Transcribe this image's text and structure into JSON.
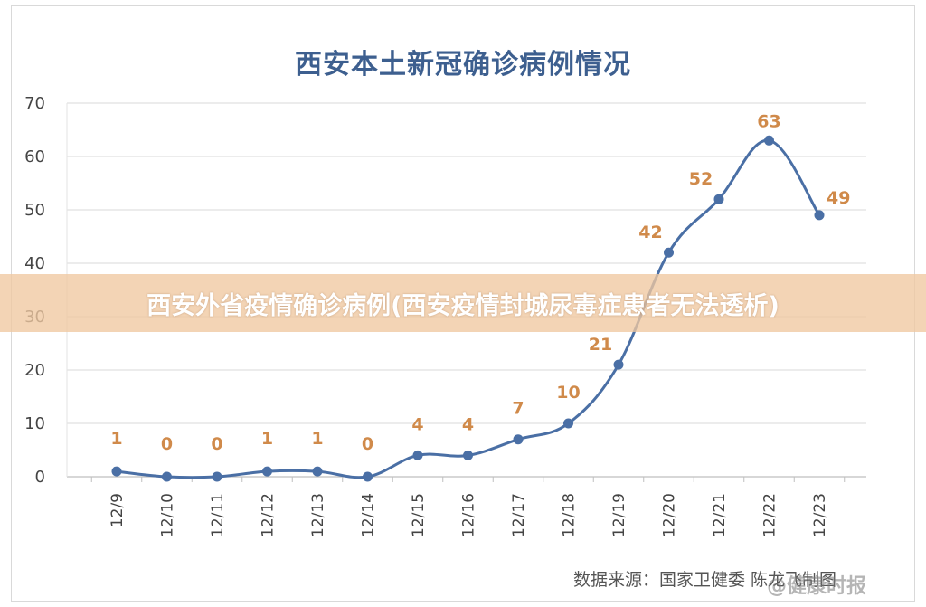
{
  "chart_data": {
    "type": "line",
    "title": "西安本土新冠确诊病例情况",
    "categories": [
      "12/9",
      "12/10",
      "12/11",
      "12/12",
      "12/13",
      "12/14",
      "12/15",
      "12/16",
      "12/17",
      "12/18",
      "12/19",
      "12/20",
      "12/21",
      "12/22",
      "12/23"
    ],
    "series": [
      {
        "values": [
          1,
          0,
          0,
          1,
          1,
          0,
          4,
          4,
          7,
          10,
          21,
          42,
          52,
          63,
          49
        ]
      }
    ],
    "ylim": [
      0,
      70
    ],
    "yticks": [
      0,
      10,
      20,
      30,
      40,
      50,
      60,
      70
    ],
    "grid": true,
    "line_color": "#4a6fa5",
    "label_color": "#d08a4a"
  },
  "banner": {
    "text": "西安外省疫情确诊病例(西安疫情封城尿毒症患者无法透析)"
  },
  "source": {
    "text": "数据来源：国家卫健委    陈龙飞制图"
  },
  "watermark": {
    "text": "@健康时报"
  }
}
